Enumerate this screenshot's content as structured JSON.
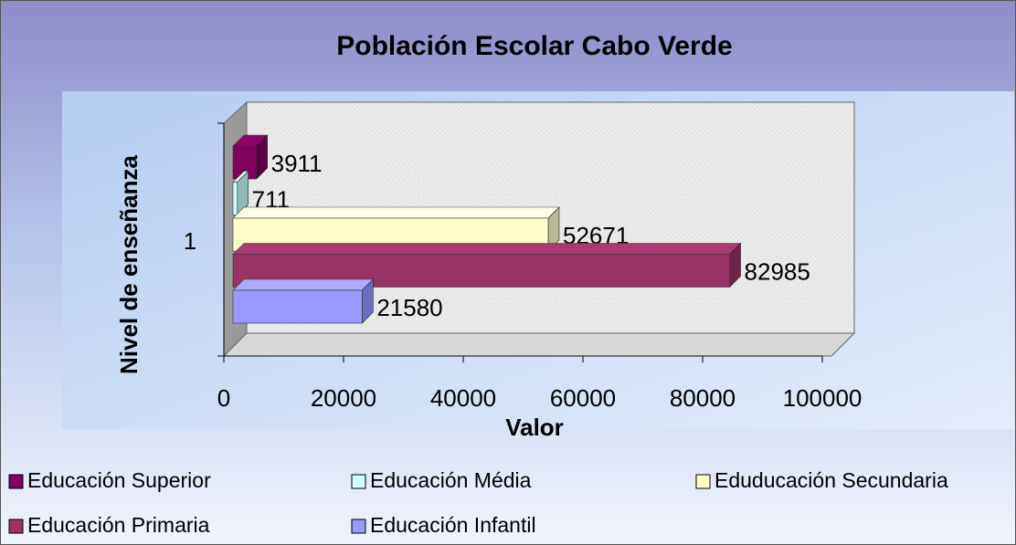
{
  "chart_data": {
    "type": "bar3d_horizontal",
    "title": "Población Escolar Cabo Verde",
    "x_label": "Valor",
    "y_label": "Nivel de enseñanza",
    "categories": [
      "1"
    ],
    "series": [
      {
        "name": "Educación Superior",
        "color": "#800060",
        "values": [
          3911
        ]
      },
      {
        "name": "Educación Média",
        "color": "#ccffff",
        "values": [
          711
        ]
      },
      {
        "name": "Eduducación Secundaria",
        "color": "#ffffcc",
        "values": [
          52671
        ]
      },
      {
        "name": "Educación Primaria",
        "color": "#993366",
        "values": [
          82985
        ]
      },
      {
        "name": "Educación Infantil",
        "color": "#9999ff",
        "values": [
          21580
        ]
      }
    ],
    "xlim": [
      0,
      100000
    ],
    "xticks": [
      0,
      20000,
      40000,
      60000,
      80000,
      100000
    ],
    "legend": "bottom"
  }
}
